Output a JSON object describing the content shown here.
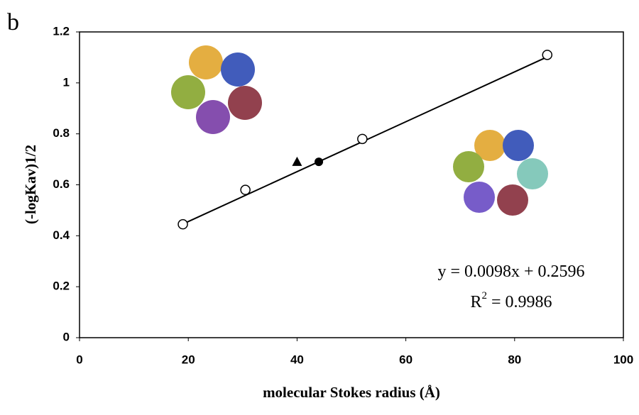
{
  "chart_data": {
    "type": "scatter",
    "panel_label": "b",
    "x_label": "molecular Stokes radius (Å)",
    "y_label": "(-logKav)1/2",
    "xlim": [
      0,
      100
    ],
    "xticks": [
      0,
      20,
      40,
      60,
      80,
      100
    ],
    "ylim": [
      0,
      1.2
    ],
    "yticks": [
      0,
      0.2,
      0.4,
      0.6,
      0.8,
      1,
      1.2
    ],
    "grid": false,
    "series": [
      {
        "color": "#000000",
        "marker": "circle-open",
        "x": [
          19,
          30.5,
          52,
          86
        ],
        "values": [
          0.445,
          0.58,
          0.78,
          1.11
        ]
      },
      {
        "color": "#000000",
        "marker": "triangle",
        "x": [
          40
        ],
        "values": [
          0.688
        ]
      },
      {
        "color": "#000000",
        "marker": "circle",
        "x": [
          44
        ],
        "values": [
          0.69
        ]
      },
      {
        "color": "#000000",
        "marker": "line",
        "x": [
          19,
          86
        ],
        "values": [
          0.446,
          1.102
        ]
      }
    ],
    "equation": "y = 0.0098x + 0.2596",
    "r_squared": {
      "base": "R",
      "sup": "2",
      "rest": " = 0.9986"
    }
  }
}
